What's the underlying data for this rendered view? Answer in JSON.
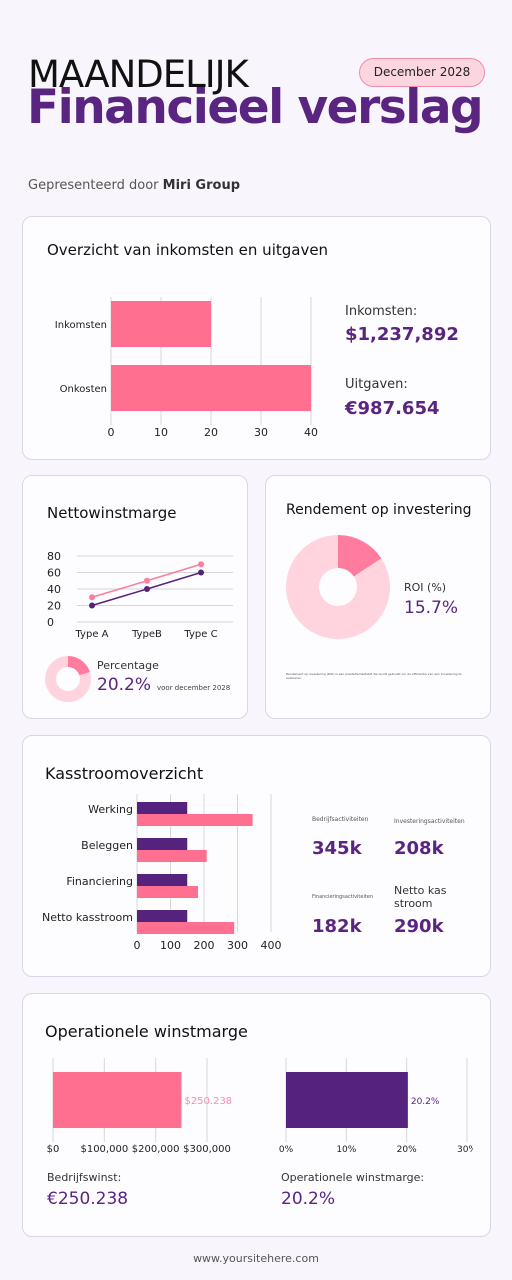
{
  "header": {
    "title_line1": "MAANDELIJK",
    "title_line2": "Financieel verslag",
    "date_badge": "December 2028",
    "presented_prefix": "Gepresenteerd door",
    "presented_company": "Miri Group"
  },
  "colors": {
    "pink": "#ff6f8f",
    "purple": "#55237d",
    "light_pink": "#ffd4de",
    "accent_text": "#5a2581"
  },
  "income_card": {
    "title": "Overzicht van inkomsten en uitgaven",
    "income_label": "Inkomsten:",
    "income_value": "$1,237,892",
    "expense_label": "Uitgaven:",
    "expense_value": "€987.654"
  },
  "net_margin_card": {
    "title": "Nettowinstmarge",
    "percentage_label": "Percentage",
    "percentage_value": "20.2%",
    "note": "voor december 2028"
  },
  "roi_card": {
    "title": "Rendement op investering",
    "roi_label": "ROI (%)",
    "roi_value": "15.7%",
    "footnote": "Rendement op investering (ROI) is een prestatiemaatstaf die wordt gebruikt om de efficiëntie van een investering te evalueren."
  },
  "cashflow_card": {
    "title": "Kasstroomoverzicht",
    "stats": [
      {
        "label": "Bedrijfsactiviteiten",
        "value": "345k"
      },
      {
        "label": "Investeringsactiviteiten",
        "value": "208k"
      },
      {
        "label": "Financieringsactiviteiten",
        "value": "182k"
      },
      {
        "label": "Netto kas stroom",
        "value": "290k"
      }
    ]
  },
  "operational_card": {
    "title": "Operationele winstmarge",
    "profit_label": "Bedrijfswinst:",
    "profit_value": "€250.238",
    "margin_label": "Operationele winstmarge:",
    "margin_value": "20.2%"
  },
  "footer": {
    "url": "www.yoursitehere.com"
  },
  "chart_data": [
    {
      "type": "bar",
      "orientation": "horizontal",
      "categories": [
        "Inkomsten",
        "Onkosten"
      ],
      "values": [
        20,
        40
      ],
      "xlim": [
        0,
        40
      ],
      "xticks": [
        "0",
        "10",
        "20",
        "30",
        "40"
      ],
      "grid": true
    },
    {
      "type": "line",
      "categories": [
        "Type A",
        "TypeB",
        "Type C"
      ],
      "series": [
        {
          "color": "#ff7c9e",
          "values": [
            30,
            50,
            70
          ]
        },
        {
          "color": "#55237d",
          "values": [
            20,
            40,
            60
          ]
        }
      ],
      "ylim": [
        0,
        80
      ],
      "yticks": [
        "0",
        "20",
        "40",
        "60",
        "80"
      ],
      "grid": true
    },
    {
      "type": "pie",
      "values": [
        20.2,
        79.8
      ],
      "colors": [
        "#ff7c9e",
        "#ffd4de"
      ]
    },
    {
      "type": "pie",
      "values": [
        15.7,
        84.3
      ],
      "colors": [
        "#ff7c9e",
        "#ffd4de"
      ]
    },
    {
      "type": "bar",
      "orientation": "horizontal",
      "categories": [
        "Werking",
        "Beleggen",
        "Financiering",
        "Netto kasstroom"
      ],
      "series": [
        {
          "color": "#55237d",
          "values": [
            150,
            150,
            150,
            150
          ]
        },
        {
          "color": "#ff6f8f",
          "values": [
            345,
            208,
            182,
            290
          ]
        }
      ],
      "xlim": [
        0,
        400
      ],
      "xticks": [
        "0",
        "100",
        "200",
        "300",
        "400"
      ],
      "grid": true
    },
    {
      "type": "bar",
      "orientation": "horizontal",
      "values": [
        250238
      ],
      "data_label": "$250.238",
      "xlim": [
        0,
        300000
      ],
      "xticks": [
        "$0",
        "$100,000",
        "$200,000",
        "$300,000"
      ],
      "grid": true
    },
    {
      "type": "bar",
      "orientation": "horizontal",
      "values": [
        20.2
      ],
      "data_label": "20.2%",
      "xlim": [
        0,
        30
      ],
      "xticks": [
        "0%",
        "10%",
        "20%",
        "30%"
      ],
      "grid": true
    }
  ]
}
